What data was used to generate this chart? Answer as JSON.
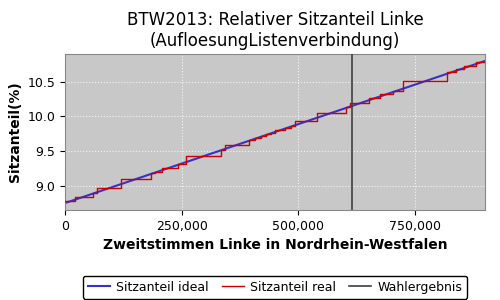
{
  "title_line1": "BTW2013: Relativer Sitzanteil Linke",
  "title_line2": "(AufloesungListenverbindung)",
  "xlabel": "Zweitstimmen Linke in Nordrhein-Westfalen",
  "ylabel": "Sitzanteil(%)",
  "x_min": 0,
  "x_max": 900000,
  "y_min": 8.65,
  "y_max": 10.9,
  "wahlergebnis_x": 615000,
  "background_color": "#c8c8c8",
  "color_real": "#cc0000",
  "color_ideal": "#3333cc",
  "color_wahlergebnis": "#404040",
  "legend_labels": [
    "Sitzanteil real",
    "Sitzanteil ideal",
    "Wahlergebnis"
  ],
  "title_fontsize": 12,
  "axis_label_fontsize": 10,
  "tick_fontsize": 9,
  "legend_fontsize": 9,
  "grid_color": "#ffffff",
  "grid_alpha": 0.8,
  "y_start": 8.75,
  "y_end": 10.8,
  "n_steps": 35,
  "x_ticks": [
    0,
    250000,
    500000,
    750000
  ],
  "y_ticks": [
    9.0,
    9.5,
    10.0,
    10.5
  ]
}
